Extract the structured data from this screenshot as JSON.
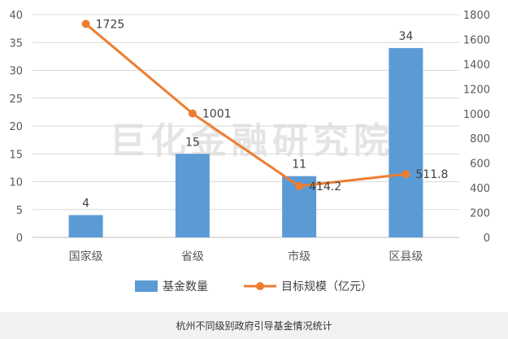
{
  "caption": "杭州不同级别政府引导基金情况统计",
  "watermark": "巨化金融研究院",
  "colors": {
    "bar": "#5b9bd5",
    "line": "#ed7d31",
    "grid": "#d9d9d9",
    "axis": "#bfbfbf"
  },
  "chart_data": {
    "type": "bar",
    "categories": [
      "国家级",
      "省级",
      "市级",
      "区县级"
    ],
    "series": [
      {
        "name": "基金数量",
        "type": "bar",
        "axis": "left",
        "values": [
          4,
          15,
          11,
          34
        ]
      },
      {
        "name": "目标规模（亿元）",
        "type": "line",
        "axis": "right",
        "values": [
          1725,
          1001,
          414.2,
          511.8
        ]
      }
    ],
    "y_left": {
      "min": 0,
      "max": 40,
      "step": 5
    },
    "y_right": {
      "min": 0,
      "max": 1800,
      "step": 200
    },
    "bar_labels": [
      "4",
      "15",
      "11",
      "34"
    ],
    "line_labels": [
      "1725",
      "1001",
      "414.2",
      "511.8"
    ],
    "grid": true,
    "legend_position": "bottom"
  }
}
